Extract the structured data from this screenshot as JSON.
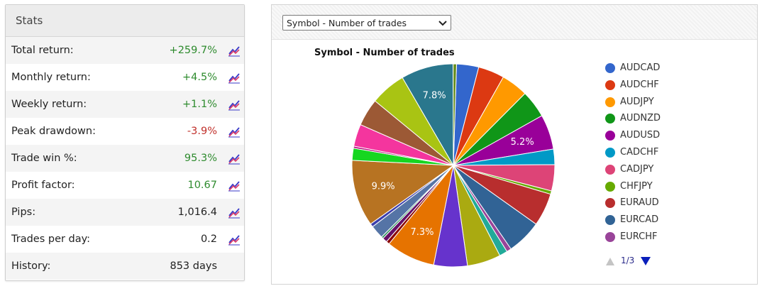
{
  "stats": {
    "title": "Stats",
    "rows": [
      {
        "label": "Total return:",
        "value": "+259.7%",
        "tone": "pos"
      },
      {
        "label": "Monthly return:",
        "value": "+4.5%",
        "tone": "pos"
      },
      {
        "label": "Weekly return:",
        "value": "+1.1%",
        "tone": "pos"
      },
      {
        "label": "Peak drawdown:",
        "value": "-3.9%",
        "tone": "neg"
      },
      {
        "label": "Trade win %:",
        "value": "95.3%",
        "tone": "pos"
      },
      {
        "label": "Profit factor:",
        "value": "10.67",
        "tone": "pos"
      },
      {
        "label": "Pips:",
        "value": "1,016.4",
        "tone": "neutral"
      },
      {
        "label": "Trades per day:",
        "value": "0.2",
        "tone": "neutral"
      },
      {
        "label": "History:",
        "value": "853 days",
        "tone": "neutral"
      }
    ]
  },
  "chart_selector": {
    "selected": "Symbol - Number of trades"
  },
  "chart_data": {
    "type": "pie",
    "title": "Symbol - Number of trades",
    "slices": [
      {
        "color": "#3366cc",
        "percent": 3.3
      },
      {
        "color": "#dc3912",
        "percent": 3.9
      },
      {
        "color": "#ff9900",
        "percent": 4.0
      },
      {
        "color": "#109618",
        "percent": 4.1
      },
      {
        "color": "#990099",
        "percent": 5.2,
        "label": "5.2%"
      },
      {
        "color": "#0099c6",
        "percent": 2.3
      },
      {
        "color": "#dd4477",
        "percent": 3.9
      },
      {
        "color": "#66aa00",
        "percent": 0.5
      },
      {
        "color": "#b82e2e",
        "percent": 4.9
      },
      {
        "color": "#316395",
        "percent": 5.2
      },
      {
        "color": "#994499",
        "percent": 0.7
      },
      {
        "color": "#22aa99",
        "percent": 1.2
      },
      {
        "color": "#aaaa11",
        "percent": 5.0
      },
      {
        "color": "#6633cc",
        "percent": 5.0
      },
      {
        "color": "#e67300",
        "percent": 7.3,
        "label": "7.3%"
      },
      {
        "color": "#8b0707",
        "percent": 0.5
      },
      {
        "color": "#651067",
        "percent": 0.7
      },
      {
        "color": "#329262",
        "percent": 0.3
      },
      {
        "color": "#5574a6",
        "percent": 2.0
      },
      {
        "color": "#3b3eac",
        "percent": 0.5
      },
      {
        "color": "#b77322",
        "percent": 9.9,
        "label": "9.9%"
      },
      {
        "color": "#16d620",
        "percent": 1.8
      },
      {
        "color": "#b91383",
        "percent": 0.3
      },
      {
        "color": "#f4359e",
        "percent": 3.3
      },
      {
        "color": "#9c5935",
        "percent": 4.1
      },
      {
        "color": "#a9c413",
        "percent": 5.3
      },
      {
        "color": "#2a778d",
        "percent": 7.8,
        "label": "7.8%"
      },
      {
        "color": "#668d1c",
        "percent": 0.5
      }
    ],
    "legend": [
      {
        "name": "AUDCAD",
        "color": "#3366cc"
      },
      {
        "name": "AUDCHF",
        "color": "#dc3912"
      },
      {
        "name": "AUDJPY",
        "color": "#ff9900"
      },
      {
        "name": "AUDNZD",
        "color": "#109618"
      },
      {
        "name": "AUDUSD",
        "color": "#990099"
      },
      {
        "name": "CADCHF",
        "color": "#0099c6"
      },
      {
        "name": "CADJPY",
        "color": "#dd4477"
      },
      {
        "name": "CHFJPY",
        "color": "#66aa00"
      },
      {
        "name": "EURAUD",
        "color": "#b82e2e"
      },
      {
        "name": "EURCAD",
        "color": "#316395"
      },
      {
        "name": "EURCHF",
        "color": "#994499"
      }
    ],
    "legend_placement": "right",
    "pager": "1/3"
  },
  "icons": {
    "row_chart": "trend-chart-icon",
    "pager_up": "triangle-up-icon",
    "pager_down": "triangle-down-icon",
    "dropdown": "chevron-down-icon"
  }
}
